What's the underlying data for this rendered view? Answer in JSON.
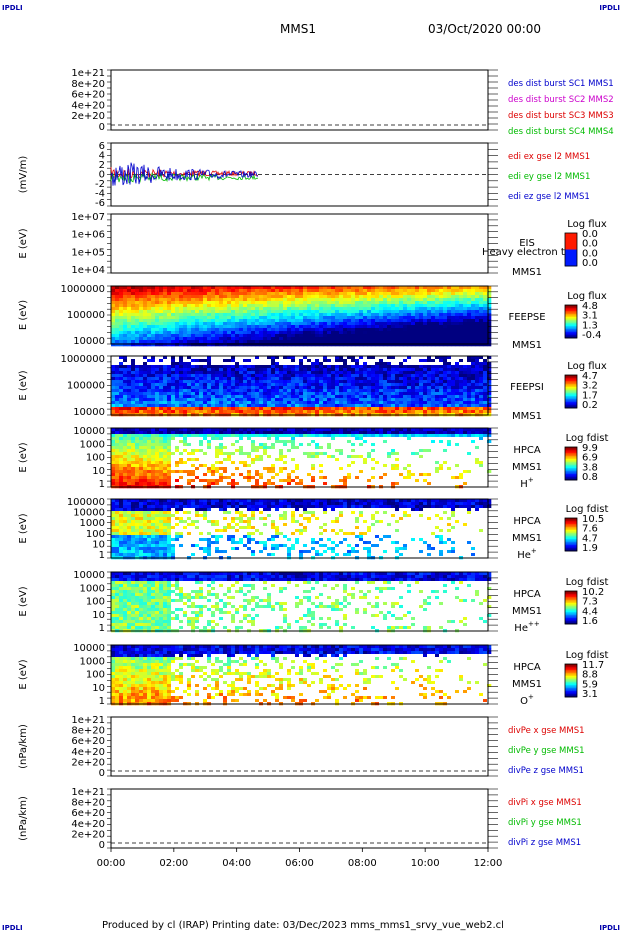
{
  "header": {
    "corner_label": "IPDLI",
    "mission": "MMS1",
    "datetime": "03/Oct/2020 00:00"
  },
  "footer": {
    "text": "Produced by cl (IRAP)   Printing date: 03/Dec/2023   mms_mms1_srvy_vue_web2.cl"
  },
  "time_axis": {
    "ticks": [
      "00:00",
      "02:00",
      "04:00",
      "06:00",
      "08:00",
      "10:00",
      "12:00"
    ],
    "range_hours": [
      0,
      12
    ]
  },
  "colors": {
    "red": "#dd0000",
    "magenta": "#cc00cc",
    "green": "#00bb00",
    "blue": "#0000cc",
    "spectrum_bg": "#0022dd"
  },
  "chart_data": [
    {
      "type": "line",
      "ytick_labels": [
        "1e+21",
        "8e+20",
        "6e+20",
        "4e+20",
        "2e+20",
        "0"
      ],
      "ylim": [
        0,
        1e+21
      ],
      "zero_line": true,
      "legend": [
        {
          "text": "des dist burst SC1 MMS1",
          "color": "#0000cc"
        },
        {
          "text": "des dist burst SC2 MMS2",
          "color": "#cc00cc"
        },
        {
          "text": "des dist burst SC3 MMS3",
          "color": "#dd0000"
        },
        {
          "text": "des dist burst SC4 MMS4",
          "color": "#00bb00"
        }
      ]
    },
    {
      "type": "line",
      "ylabel": "(mV/m)",
      "ytick_labels": [
        "6",
        "4",
        "2",
        "0",
        "-2",
        "-4",
        "-6"
      ],
      "ylim": [
        -6,
        6
      ],
      "zero_line": true,
      "data_span_hours": [
        0,
        4.7
      ],
      "legend": [
        {
          "text": "edi ex gse l2 MMS1",
          "color": "#dd0000"
        },
        {
          "text": "edi ey gse l2 MMS1",
          "color": "#00bb00"
        },
        {
          "text": "edi ez gse l2 MMS1",
          "color": "#0000cc"
        }
      ]
    },
    {
      "type": "heatmap",
      "ylabel": "E (eV)",
      "ytick_labels": [
        "1e+07",
        "1e+06",
        "1e+05",
        "1e+04"
      ],
      "side_labels": [
        "EIS",
        "MMS1"
      ],
      "overlap_text": "Heavy electron to",
      "colorbar": {
        "title": "Log flux",
        "ticks": [
          "0.0",
          "0.0",
          "0.0",
          "0.0"
        ]
      },
      "empty": true
    },
    {
      "type": "heatmap",
      "ylabel": "E (eV)",
      "ytick_labels": [
        "1000000",
        "100000",
        "10000"
      ],
      "side_labels": [
        "FEEPSE",
        "MMS1"
      ],
      "colorbar": {
        "title": "Log flux",
        "ticks": [
          "4.8",
          "3.1",
          "1.3",
          "-0.4"
        ]
      }
    },
    {
      "type": "heatmap",
      "ylabel": "E (eV)",
      "ytick_labels": [
        "1000000",
        "100000",
        "10000"
      ],
      "side_labels": [
        "FEEPSI",
        "MMS1"
      ],
      "colorbar": {
        "title": "Log flux",
        "ticks": [
          "4.7",
          "3.2",
          "1.7",
          "0.2"
        ]
      }
    },
    {
      "type": "heatmap",
      "ylabel": "E (eV)",
      "ytick_labels": [
        "10000",
        "1000",
        "100",
        "10",
        "1"
      ],
      "side_labels": [
        "HPCA",
        "MMS1",
        "H+"
      ],
      "colorbar": {
        "title": "Log fdist",
        "ticks": [
          "9.9",
          "6.9",
          "3.8",
          "0.8"
        ]
      }
    },
    {
      "type": "heatmap",
      "ylabel": "E (eV)",
      "ytick_labels": [
        "100000",
        "10000",
        "1000",
        "100",
        "10",
        "1"
      ],
      "side_labels": [
        "HPCA",
        "MMS1",
        "He+"
      ],
      "colorbar": {
        "title": "Log fdist",
        "ticks": [
          "10.5",
          "7.6",
          "4.7",
          "1.9"
        ]
      }
    },
    {
      "type": "heatmap",
      "ylabel": "E (eV)",
      "ytick_labels": [
        "10000",
        "1000",
        "100",
        "10",
        "1"
      ],
      "side_labels": [
        "HPCA",
        "MMS1",
        "He++"
      ],
      "colorbar": {
        "title": "Log fdist",
        "ticks": [
          "10.2",
          "7.3",
          "4.4",
          "1.6"
        ]
      }
    },
    {
      "type": "heatmap",
      "ylabel": "E (eV)",
      "ytick_labels": [
        "10000",
        "1000",
        "100",
        "10",
        "1"
      ],
      "side_labels": [
        "HPCA",
        "MMS1",
        "O+"
      ],
      "colorbar": {
        "title": "Log fdist",
        "ticks": [
          "11.7",
          "8.8",
          "5.9",
          "3.1"
        ]
      }
    },
    {
      "type": "line",
      "ylabel": "(nPa/km)",
      "ytick_labels": [
        "1e+21",
        "8e+20",
        "6e+20",
        "4e+20",
        "2e+20",
        "0"
      ],
      "ylim": [
        0,
        1e+21
      ],
      "zero_line": true,
      "legend": [
        {
          "text": "divPe x gse MMS1",
          "color": "#dd0000"
        },
        {
          "text": "divPe y gse MMS1",
          "color": "#00bb00"
        },
        {
          "text": "divPe z gse MMS1",
          "color": "#0000cc"
        }
      ]
    },
    {
      "type": "line",
      "ylabel": "(nPa/km)",
      "ytick_labels": [
        "1e+21",
        "8e+20",
        "6e+20",
        "4e+20",
        "2e+20",
        "0"
      ],
      "ylim": [
        0,
        1e+21
      ],
      "zero_line": true,
      "legend": [
        {
          "text": "divPi x gse MMS1",
          "color": "#dd0000"
        },
        {
          "text": "divPi y gse MMS1",
          "color": "#00bb00"
        },
        {
          "text": "divPi z gse MMS1",
          "color": "#0000cc"
        }
      ]
    }
  ]
}
